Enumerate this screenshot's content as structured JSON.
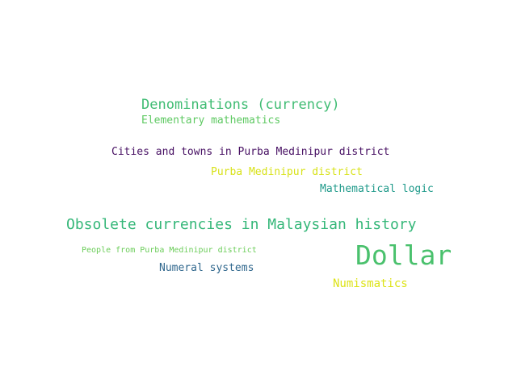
{
  "words": [
    {
      "text": "Denominations (currency)",
      "color": "#3fbc73"
    },
    {
      "text": "Elementary mathematics",
      "color": "#5ec962"
    },
    {
      "text": "Cities and towns in Purba Medinipur district",
      "color": "#471063"
    },
    {
      "text": "Purba Medinipur district",
      "color": "#d8e219"
    },
    {
      "text": "Mathematical logic",
      "color": "#1f9a8a"
    },
    {
      "text": "Obsolete currencies in Malaysian history",
      "color": "#35b779"
    },
    {
      "text": "People from Purba Medinipur district",
      "color": "#6ccd5a"
    },
    {
      "text": "Dollar",
      "color": "#4ac16d"
    },
    {
      "text": "Numeral systems",
      "color": "#31688e"
    },
    {
      "text": "Numismatics",
      "color": "#dde318"
    }
  ]
}
